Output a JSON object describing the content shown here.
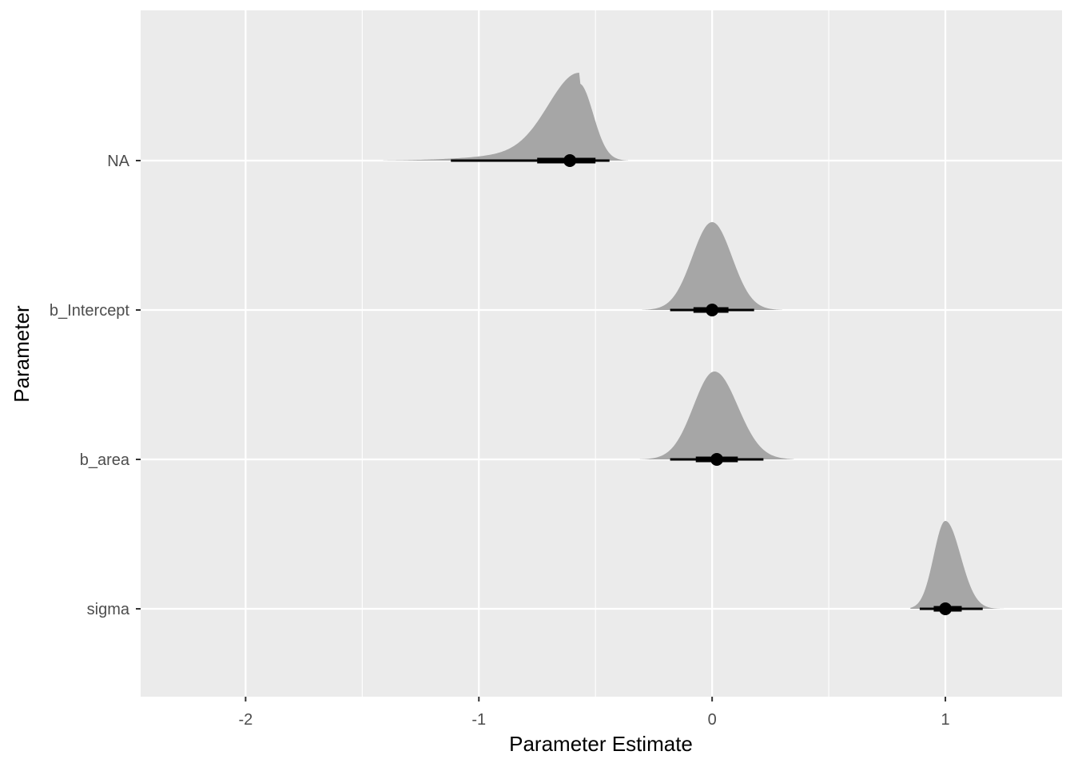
{
  "chart_data": {
    "type": "halfeye",
    "title": "",
    "xlabel": "Parameter Estimate",
    "ylabel": "Parameter",
    "xlim": [
      -2.45,
      1.5
    ],
    "x_ticks": [
      -2,
      -1,
      0,
      1
    ],
    "x_tick_labels": [
      "-2",
      "-1",
      "0",
      "1"
    ],
    "grid": true,
    "categories": [
      "NA",
      "b_Intercept",
      "b_area",
      "sigma"
    ],
    "series": [
      {
        "category": "NA",
        "point": -0.61,
        "interval_66": [
          -0.75,
          -0.5
        ],
        "interval_95": [
          -1.12,
          -0.44
        ],
        "density": {
          "mode": -0.57,
          "sd_left": 0.13,
          "sd_right": 0.06,
          "tail_left": 0.3,
          "tail_weight": 0.14,
          "min": -1.41,
          "max": -0.36
        }
      },
      {
        "category": "b_Intercept",
        "point": 0.0,
        "interval_66": [
          -0.08,
          0.07
        ],
        "interval_95": [
          -0.18,
          0.18
        ],
        "density": {
          "mode": 0.0,
          "sd_left": 0.085,
          "sd_right": 0.085,
          "tail_left": 0,
          "tail_weight": 0,
          "min": -0.3,
          "max": 0.3
        }
      },
      {
        "category": "b_area",
        "point": 0.02,
        "interval_66": [
          -0.07,
          0.11
        ],
        "interval_95": [
          -0.18,
          0.22
        ],
        "density": {
          "mode": 0.01,
          "sd_left": 0.09,
          "sd_right": 0.1,
          "tail_left": 0,
          "tail_weight": 0,
          "min": -0.31,
          "max": 0.35
        }
      },
      {
        "category": "sigma",
        "point": 1.0,
        "interval_66": [
          0.95,
          1.07
        ],
        "interval_95": [
          0.89,
          1.16
        ],
        "density": {
          "mode": 1.0,
          "sd_left": 0.05,
          "sd_right": 0.065,
          "tail_left": 0,
          "tail_weight": 0,
          "min": 0.85,
          "max": 1.25
        }
      }
    ],
    "colors": {
      "panel_background": "#ebebeb",
      "grid_line": "#ffffff",
      "density_fill": "#a6a6a6",
      "interval": "#000000",
      "tick_text": "#4d4d4d"
    }
  }
}
